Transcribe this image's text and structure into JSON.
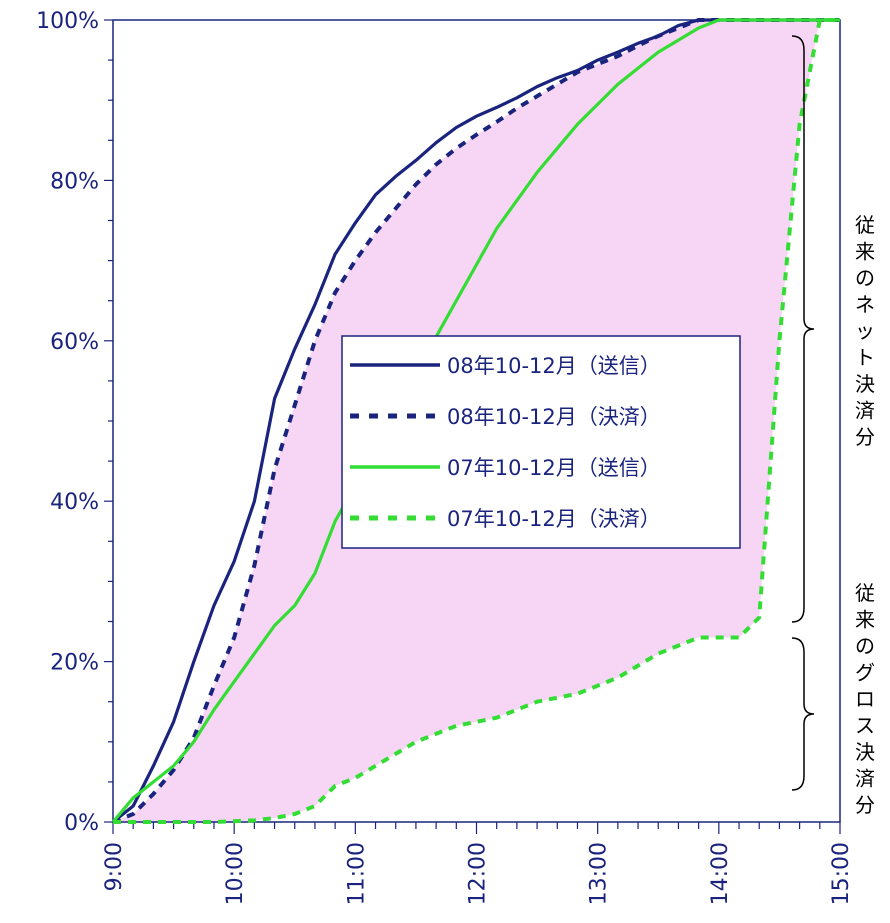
{
  "chart_data": {
    "type": "line",
    "title": "",
    "xlabel": "",
    "ylabel": "",
    "x_ticks": [
      "9:00",
      "10:00",
      "11:00",
      "12:00",
      "13:00",
      "14:00",
      "15:00"
    ],
    "y_ticks": [
      "0%",
      "20%",
      "40%",
      "60%",
      "80%",
      "100%"
    ],
    "ylim": [
      0,
      100
    ],
    "x_range_hours": [
      9,
      15
    ],
    "grid": false,
    "legend_position": "center",
    "shaded_region": {
      "between": [
        "08年10-12月（決済）",
        "07年10-12月（決済）"
      ],
      "color": "#f6d6f4"
    },
    "x": [
      "9:00",
      "9:10",
      "9:20",
      "9:30",
      "9:40",
      "9:50",
      "10:00",
      "10:10",
      "10:20",
      "10:30",
      "10:40",
      "10:50",
      "11:00",
      "11:10",
      "11:20",
      "11:30",
      "11:40",
      "11:50",
      "12:00",
      "12:10",
      "12:20",
      "12:30",
      "12:40",
      "12:50",
      "13:00",
      "13:10",
      "13:20",
      "13:30",
      "13:40",
      "13:50",
      "14:00",
      "14:10",
      "14:20",
      "14:30",
      "14:40",
      "14:50",
      "15:00"
    ],
    "series": [
      {
        "name": "08年10-12月（送信）",
        "style": "solid",
        "color": "#1a237e",
        "values": [
          0,
          2,
          7,
          12.5,
          20,
          27,
          32.5,
          40,
          52.8,
          59,
          64.5,
          70.8,
          74.7,
          78.2,
          80.5,
          82.5,
          84.7,
          86.6,
          88,
          89.1,
          90.3,
          91.7,
          92.8,
          93.7,
          95,
          96,
          97.1,
          98,
          99.3,
          100,
          100,
          100,
          100,
          100,
          100,
          100,
          100
        ]
      },
      {
        "name": "08年10-12月（決済）",
        "style": "dashed",
        "color": "#1a237e",
        "values": [
          0,
          1,
          3.5,
          6.5,
          10.5,
          17,
          23,
          32,
          44,
          52,
          60,
          66,
          70,
          73.5,
          76.5,
          79.5,
          82,
          84,
          85.7,
          87.3,
          89,
          90.5,
          92,
          93.5,
          94.5,
          95.5,
          96.8,
          98,
          99,
          100,
          100,
          100,
          100,
          100,
          100,
          100,
          100
        ]
      },
      {
        "name": "07年10-12月（送信）",
        "style": "solid",
        "color": "#33dd33",
        "values": [
          0,
          3,
          5,
          7,
          10,
          14,
          17.5,
          21,
          24.5,
          27,
          31,
          37.5,
          42,
          46,
          50,
          55,
          60.5,
          65,
          69.5,
          74,
          77.5,
          81,
          84,
          87,
          89.5,
          92,
          94,
          96,
          97.5,
          99,
          100,
          100,
          100,
          100,
          100,
          100,
          100
        ]
      },
      {
        "name": "07年10-12月（決済）",
        "style": "dashed",
        "color": "#33dd33",
        "values": [
          0,
          0,
          0,
          0,
          0,
          0,
          0.1,
          0.2,
          0.5,
          1,
          2,
          4.5,
          5.5,
          7,
          8.5,
          10,
          11,
          12,
          12.5,
          13,
          14,
          15,
          15.5,
          16,
          17,
          18,
          19.5,
          21,
          22,
          23,
          23,
          23,
          25.5,
          60,
          87,
          100,
          100
        ]
      }
    ],
    "annotations": {
      "net_label": "従来のネット決済分",
      "gross_label": "従来のグロス決済分"
    }
  }
}
